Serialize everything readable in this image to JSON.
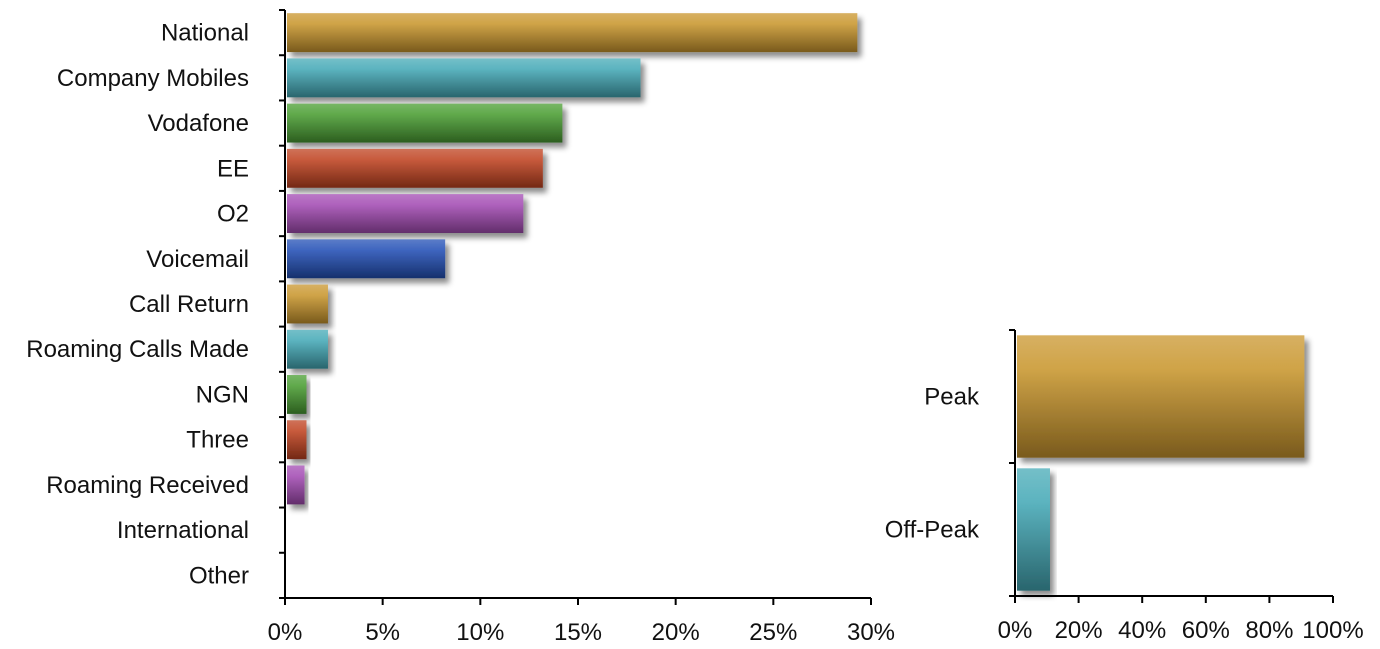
{
  "chart_data": [
    {
      "type": "bar",
      "orientation": "horizontal",
      "categories": [
        "National",
        "Company Mobiles",
        "Vodafone",
        "EE",
        "O2",
        "Voicemail",
        "Call Return",
        "Roaming Calls Made",
        "NGN",
        "Three",
        "Roaming Received",
        "International",
        "Other"
      ],
      "values": [
        29.3,
        18.2,
        14.2,
        13.2,
        12.2,
        8.2,
        2.2,
        2.2,
        1.1,
        1.1,
        1.0,
        0,
        0
      ],
      "unit": "%",
      "xlim": [
        0,
        30
      ],
      "xticks": [
        "0%",
        "5%",
        "10%",
        "15%",
        "20%",
        "25%",
        "30%"
      ],
      "title": "",
      "xlabel": "",
      "ylabel": "",
      "grid": false,
      "legend": "none",
      "colors": [
        "#c9962e",
        "#45a9b6",
        "#4a9d33",
        "#bf4321",
        "#a34bb3",
        "#2450b6",
        "#c9962e",
        "#45a9b6",
        "#4a9d33",
        "#bf4321",
        "#a34bb3",
        "#2450b6",
        "#c9962e"
      ]
    },
    {
      "type": "bar",
      "orientation": "horizontal",
      "categories": [
        "Peak",
        "Off-Peak"
      ],
      "values": [
        91,
        11
      ],
      "unit": "%",
      "xlim": [
        0,
        100
      ],
      "xticks": [
        "0%",
        "20%",
        "40%",
        "60%",
        "80%",
        "100%"
      ],
      "title": "",
      "xlabel": "",
      "ylabel": "",
      "grid": false,
      "legend": "none",
      "colors": [
        "#c9962e",
        "#45a9b6"
      ]
    }
  ]
}
